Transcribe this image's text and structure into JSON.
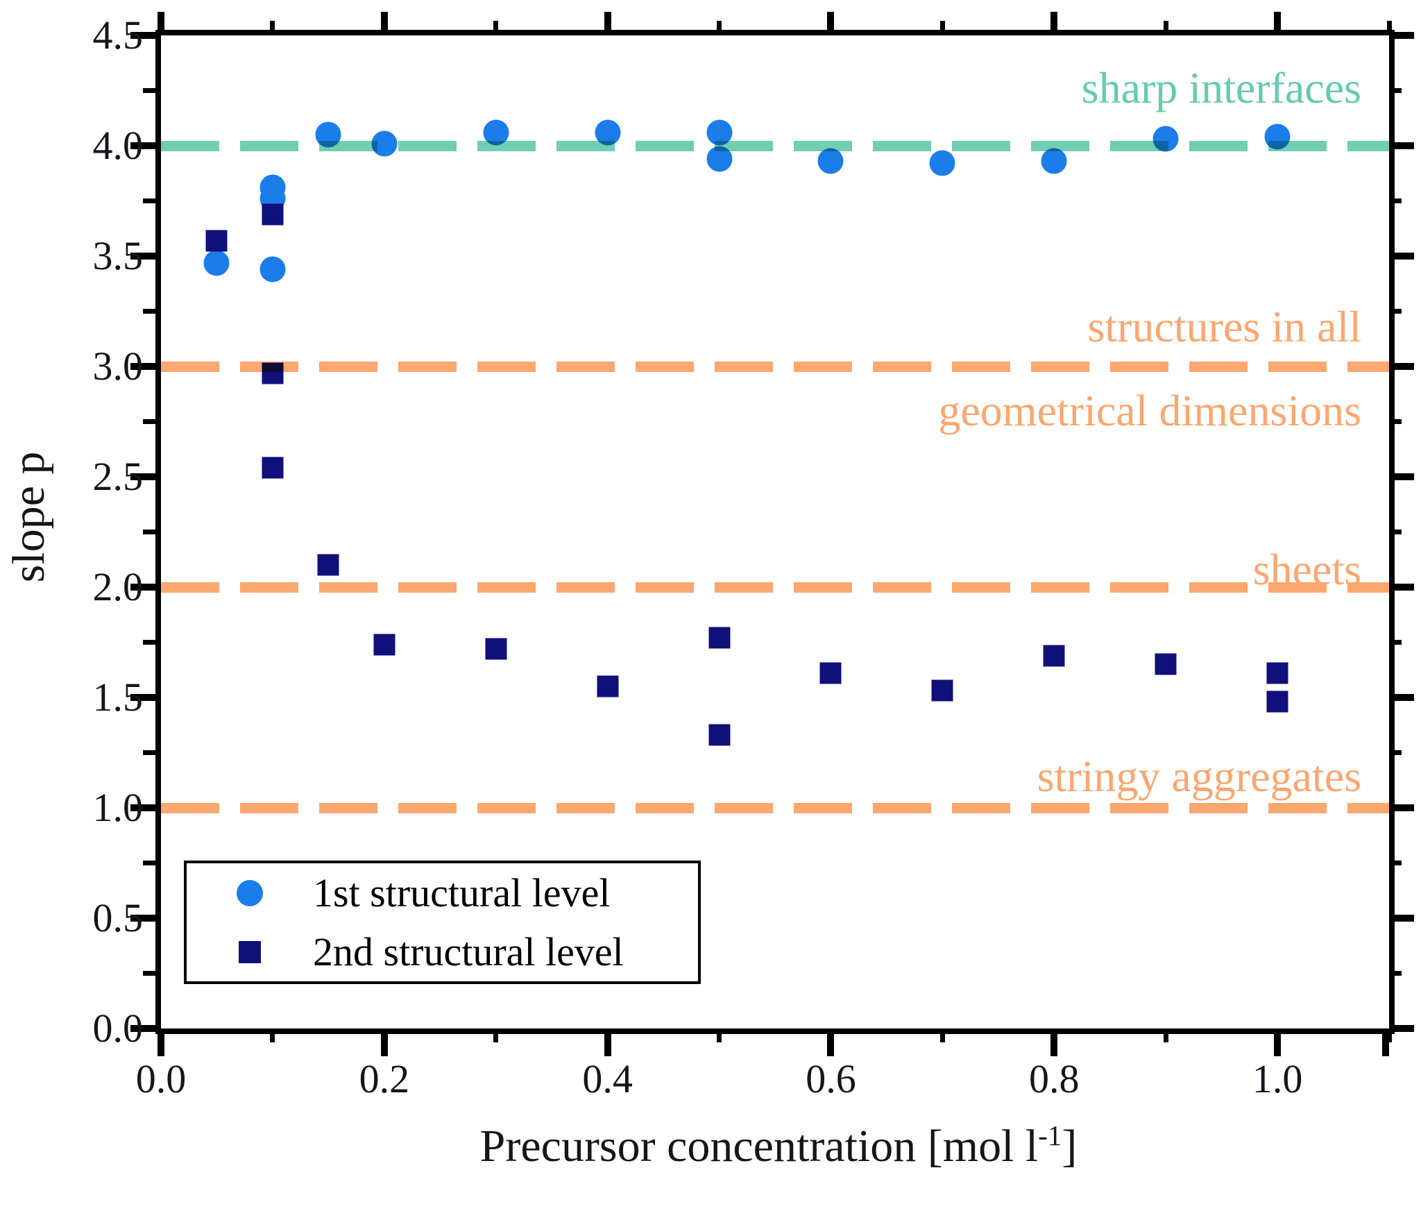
{
  "chart_data": {
    "type": "scatter",
    "title": "",
    "ylabel": "slope p",
    "xlabel_parts": {
      "prefix": "Precursor concentration [mol l",
      "sup": "-1",
      "suffix": "]"
    },
    "xlim": [
      0,
      1.1
    ],
    "ylim": [
      0,
      4.5
    ],
    "x_major_step": 0.2,
    "x_minor_step": 0.1,
    "x_label_max": 1.0,
    "y_major_step": 0.5,
    "y_minor_step": 0.25,
    "grid": false,
    "legend_position": "bottom-left",
    "series": [
      {
        "name": "1st structural level",
        "marker": "circle",
        "color": "#1a7de9",
        "points": [
          [
            0.05,
            3.47
          ],
          [
            0.1,
            3.81
          ],
          [
            0.1,
            3.76
          ],
          [
            0.1,
            3.44
          ],
          [
            0.15,
            4.05
          ],
          [
            0.2,
            4.01
          ],
          [
            0.3,
            4.06
          ],
          [
            0.4,
            4.06
          ],
          [
            0.5,
            4.06
          ],
          [
            0.5,
            3.94
          ],
          [
            0.6,
            3.93
          ],
          [
            0.7,
            3.92
          ],
          [
            0.8,
            3.93
          ],
          [
            0.9,
            4.03
          ],
          [
            1.0,
            4.04
          ]
        ]
      },
      {
        "name": "2nd structural level",
        "marker": "square",
        "color": "#10107a",
        "points": [
          [
            0.05,
            3.57
          ],
          [
            0.1,
            3.69
          ],
          [
            0.1,
            2.97
          ],
          [
            0.1,
            2.54
          ],
          [
            0.15,
            2.1
          ],
          [
            0.2,
            1.74
          ],
          [
            0.3,
            1.72
          ],
          [
            0.4,
            1.55
          ],
          [
            0.5,
            1.77
          ],
          [
            0.5,
            1.33
          ],
          [
            0.6,
            1.61
          ],
          [
            0.7,
            1.53
          ],
          [
            0.8,
            1.69
          ],
          [
            0.9,
            1.65
          ],
          [
            1.0,
            1.61
          ],
          [
            1.0,
            1.48
          ]
        ]
      }
    ],
    "reference_lines": [
      {
        "y": 4.0,
        "color": "#71ceb3",
        "style": "dashed"
      },
      {
        "y": 3.0,
        "color": "#faa770",
        "style": "dashed"
      },
      {
        "y": 2.0,
        "color": "#faa770",
        "style": "dashed"
      },
      {
        "y": 1.0,
        "color": "#faa770",
        "style": "dashed"
      }
    ],
    "annotations": [
      {
        "text": "sharp interfaces",
        "y": 4.26,
        "color": "#64cbae"
      },
      {
        "text": "structures in all",
        "y": 3.18,
        "color": "#faa770"
      },
      {
        "text": "geometrical dimensions",
        "y": 2.8,
        "color": "#faa770"
      },
      {
        "text": "sheets",
        "y": 2.08,
        "color": "#faa770"
      },
      {
        "text": "stringy aggregates",
        "y": 1.14,
        "color": "#faa770"
      }
    ]
  }
}
